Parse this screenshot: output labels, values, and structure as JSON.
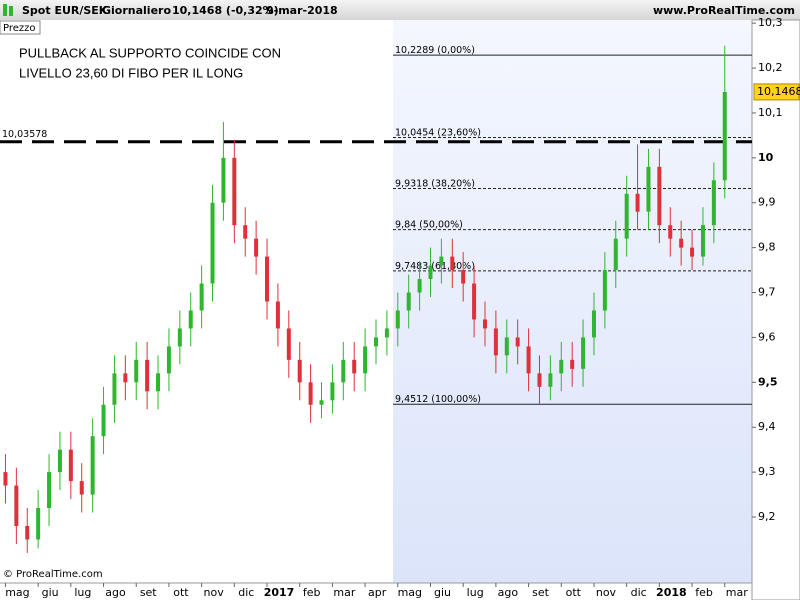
{
  "chart_data": {
    "type": "candlestick",
    "title": "Spot EUR/SEK",
    "period": "Giornaliero",
    "quote": "10,1468 (-0,32%)",
    "date": "9-mar-2018",
    "site": "www.ProRealTime.com",
    "panel_label": "Prezzo",
    "annotation": [
      "PULLBACK AL SUPPORTO COINCIDE CON",
      "LIVELLO 23,60 DI FIBO PER IL LONG"
    ],
    "watermark": "© ProRealTime.com",
    "up_color": "#2fb52f",
    "down_color": "#e0303a",
    "open": [
      9.3,
      9.27,
      9.18,
      9.15,
      9.22,
      9.3,
      9.35,
      9.28,
      9.25,
      9.38,
      9.45,
      9.52,
      9.5,
      9.55,
      9.48,
      9.52,
      9.58,
      9.62,
      9.66,
      9.72,
      9.9,
      10.0,
      9.85,
      9.82,
      9.78,
      9.68,
      9.62,
      9.55,
      9.5,
      9.45,
      9.46,
      9.5,
      9.55,
      9.52,
      9.58,
      9.6,
      9.62,
      9.66,
      9.7,
      9.73,
      9.76,
      9.78,
      9.75,
      9.72,
      9.64,
      9.62,
      9.56,
      9.6,
      9.58,
      9.52,
      9.49,
      9.52,
      9.55,
      9.53,
      9.6,
      9.66,
      9.75,
      9.82,
      9.92,
      9.88,
      9.98,
      9.85,
      9.82,
      9.8,
      9.78,
      9.85,
      9.95
    ],
    "high": [
      9.34,
      9.31,
      9.22,
      9.26,
      9.34,
      9.39,
      9.39,
      9.32,
      9.42,
      9.49,
      9.56,
      9.56,
      9.59,
      9.59,
      9.56,
      9.62,
      9.66,
      9.7,
      9.76,
      9.94,
      10.08,
      10.04,
      9.89,
      9.86,
      9.82,
      9.72,
      9.66,
      9.59,
      9.54,
      9.5,
      9.54,
      9.59,
      9.59,
      9.62,
      9.64,
      9.66,
      9.7,
      9.74,
      9.77,
      9.8,
      9.82,
      9.82,
      9.79,
      9.76,
      9.68,
      9.66,
      9.64,
      9.64,
      9.62,
      9.56,
      9.56,
      9.59,
      9.59,
      9.64,
      9.7,
      9.79,
      9.86,
      9.96,
      10.03,
      10.02,
      10.02,
      9.89,
      9.86,
      9.84,
      9.89,
      9.99,
      10.25
    ],
    "low": [
      9.23,
      9.14,
      9.12,
      9.13,
      9.18,
      9.26,
      9.24,
      9.21,
      9.21,
      9.34,
      9.41,
      9.46,
      9.46,
      9.44,
      9.44,
      9.48,
      9.54,
      9.58,
      9.62,
      9.68,
      9.86,
      9.81,
      9.78,
      9.74,
      9.64,
      9.58,
      9.51,
      9.46,
      9.41,
      9.42,
      9.43,
      9.46,
      9.48,
      9.48,
      9.54,
      9.56,
      9.58,
      9.62,
      9.66,
      9.69,
      9.72,
      9.71,
      9.68,
      9.6,
      9.58,
      9.52,
      9.52,
      9.54,
      9.48,
      9.45,
      9.46,
      9.48,
      9.49,
      9.49,
      9.56,
      9.62,
      9.71,
      9.78,
      9.84,
      9.84,
      9.81,
      9.78,
      9.76,
      9.75,
      9.76,
      9.81,
      9.91
    ],
    "close": [
      9.27,
      9.18,
      9.15,
      9.22,
      9.3,
      9.35,
      9.28,
      9.25,
      9.38,
      9.45,
      9.52,
      9.5,
      9.55,
      9.48,
      9.52,
      9.58,
      9.62,
      9.66,
      9.72,
      9.9,
      10.0,
      9.85,
      9.82,
      9.78,
      9.68,
      9.62,
      9.55,
      9.5,
      9.45,
      9.46,
      9.5,
      9.55,
      9.52,
      9.58,
      9.6,
      9.62,
      9.66,
      9.7,
      9.73,
      9.76,
      9.78,
      9.75,
      9.72,
      9.64,
      9.62,
      9.56,
      9.6,
      9.58,
      9.52,
      9.49,
      9.52,
      9.55,
      9.53,
      9.6,
      9.66,
      9.75,
      9.82,
      9.92,
      9.88,
      9.98,
      9.85,
      9.82,
      9.8,
      9.78,
      9.85,
      9.95,
      10.1468
    ],
    "xlim": [
      -0.5,
      68.5
    ],
    "xticks": [
      {
        "value": 0,
        "label": "mag"
      },
      {
        "value": 3,
        "label": "giu"
      },
      {
        "value": 6,
        "label": "lug"
      },
      {
        "value": 9,
        "label": "ago"
      },
      {
        "value": 12,
        "label": "set"
      },
      {
        "value": 15,
        "label": "ott"
      },
      {
        "value": 18,
        "label": "nov"
      },
      {
        "value": 21,
        "label": "dic"
      },
      {
        "value": 24,
        "label": "2017"
      },
      {
        "value": 27,
        "label": "feb"
      },
      {
        "value": 30,
        "label": "mar"
      },
      {
        "value": 33,
        "label": "apr"
      },
      {
        "value": 36,
        "label": "mag"
      },
      {
        "value": 39,
        "label": "giu"
      },
      {
        "value": 42,
        "label": "lug"
      },
      {
        "value": 45,
        "label": "ago"
      },
      {
        "value": 48,
        "label": "set"
      },
      {
        "value": 51,
        "label": "ott"
      },
      {
        "value": 54,
        "label": "nov"
      },
      {
        "value": 57,
        "label": "dic"
      },
      {
        "value": 60,
        "label": "2018"
      },
      {
        "value": 63,
        "label": "feb"
      },
      {
        "value": 66,
        "label": "mar"
      }
    ],
    "ylim": [
      9.053,
      10.307
    ],
    "yticks": [
      {
        "value": 9.2,
        "label": "9,2"
      },
      {
        "value": 9.3,
        "label": "9,3"
      },
      {
        "value": 9.4,
        "label": "9,4"
      },
      {
        "value": 9.5,
        "label": "9,5"
      },
      {
        "value": 9.6,
        "label": "9,6"
      },
      {
        "value": 9.7,
        "label": "9,7"
      },
      {
        "value": 9.8,
        "label": "9,8"
      },
      {
        "value": 9.9,
        "label": "9,9"
      },
      10,
      {
        "value": 10.1,
        "label": "10,1"
      },
      {
        "value": 10.2,
        "label": "10,2"
      },
      {
        "value": 10.3,
        "label": "10,3"
      }
    ],
    "fib_levels": [
      {
        "value": 10.2289,
        "label": "10,2289 (0,00%)"
      },
      {
        "value": 10.0454,
        "label": "10,0454 (23,60%)"
      },
      {
        "value": 9.9318,
        "label": "9,9318 (38,20%)"
      },
      {
        "value": 9.84,
        "label": "9,84 (50,00%)"
      },
      {
        "value": 9.7483,
        "label": "9,7483 (61,80%)"
      },
      {
        "value": 9.4512,
        "label": "9,4512 (100,00%)"
      }
    ],
    "support_line": {
      "value": 10.03578,
      "label": "10,03578"
    },
    "last_price": {
      "value": 10.1468,
      "label": "10,1468"
    }
  }
}
